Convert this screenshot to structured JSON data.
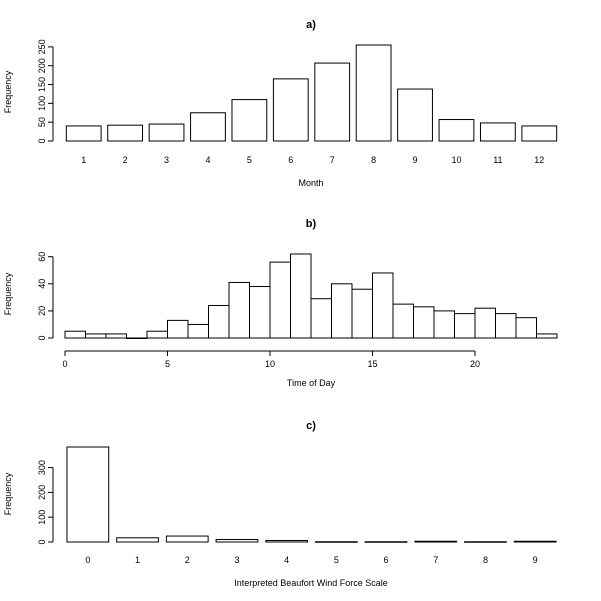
{
  "chart_data": [
    {
      "type": "bar",
      "title": "a)",
      "xlabel": "Month",
      "ylabel": "Frequency",
      "categories": [
        "1",
        "2",
        "3",
        "4",
        "5",
        "6",
        "7",
        "8",
        "9",
        "10",
        "11",
        "12"
      ],
      "values": [
        40,
        42,
        45,
        75,
        110,
        165,
        207,
        255,
        138,
        57,
        48,
        40
      ],
      "ylim": [
        0,
        255
      ],
      "yticks": [
        0,
        50,
        100,
        150,
        200,
        250
      ]
    },
    {
      "type": "histogram",
      "title": "b)",
      "xlabel": "Time of Day",
      "ylabel": "Frequency",
      "bin_width": 1,
      "bin_start": 0,
      "values": [
        5,
        3,
        3,
        0,
        5,
        13,
        10,
        24,
        41,
        38,
        56,
        62,
        29,
        40,
        36,
        48,
        25,
        23,
        20,
        18,
        22,
        18,
        15,
        3
      ],
      "xlim": [
        0,
        24
      ],
      "xticks": [
        0,
        5,
        10,
        15,
        20
      ],
      "ylim": [
        0,
        62
      ],
      "yticks": [
        0,
        20,
        40,
        60
      ]
    },
    {
      "type": "bar",
      "title": "c)",
      "xlabel": "Interpreted Beaufort Wind Force Scale",
      "ylabel": "Frequency",
      "categories": [
        "0",
        "1",
        "2",
        "3",
        "4",
        "5",
        "6",
        "7",
        "8",
        "9"
      ],
      "values": [
        383,
        17,
        24,
        10,
        6,
        1,
        1,
        3,
        1,
        3
      ],
      "ylim": [
        0,
        383
      ],
      "yticks": [
        0,
        100,
        200,
        300
      ]
    }
  ]
}
